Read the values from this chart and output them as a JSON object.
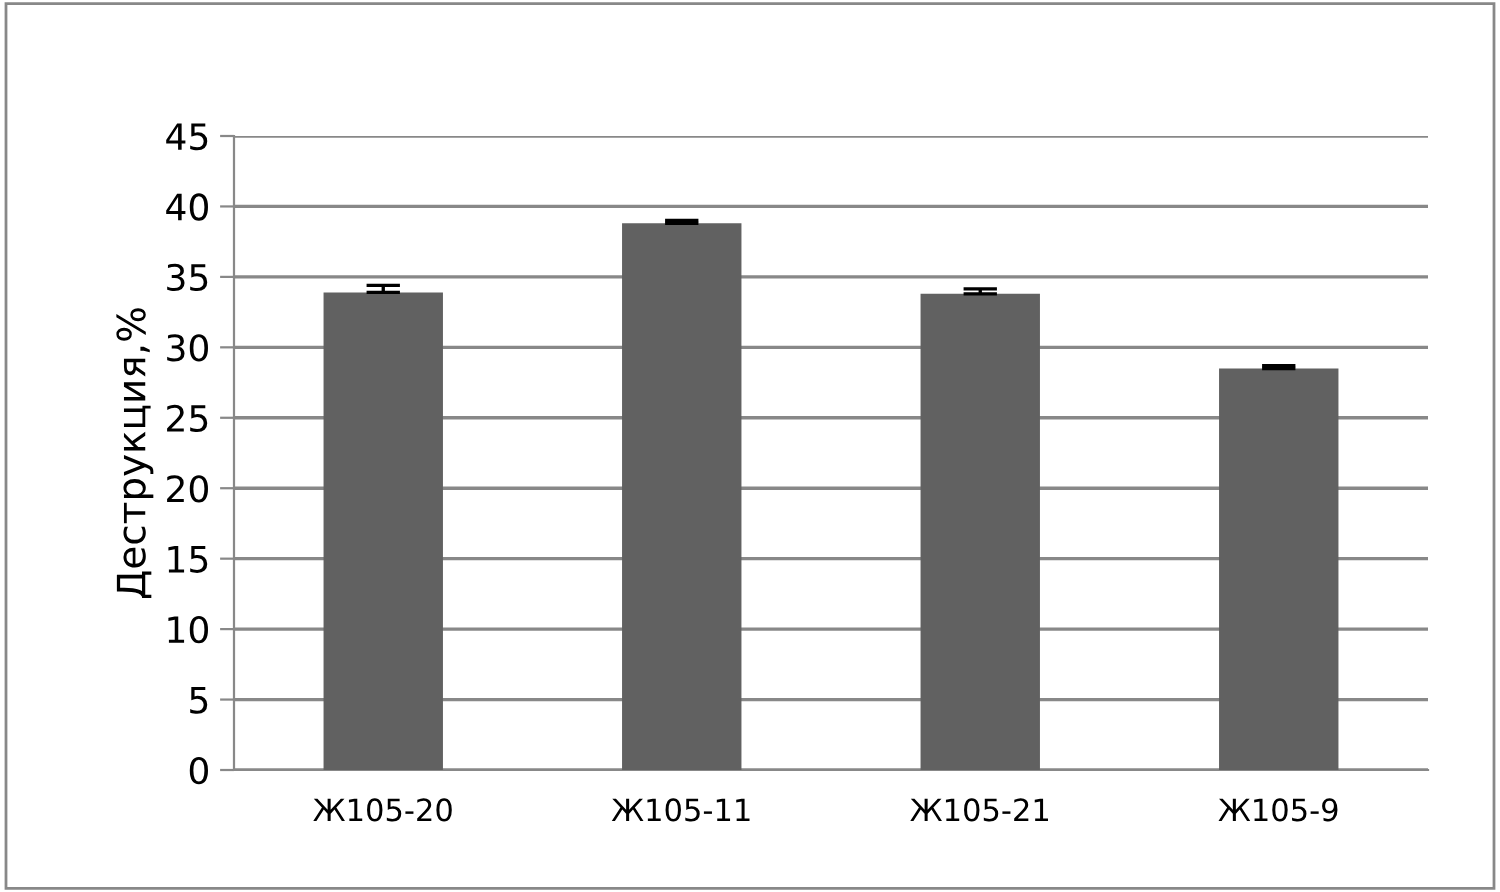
{
  "chart_data": {
    "type": "bar",
    "ylabel": "Деструкция,%",
    "categories": [
      "Ж105-20",
      "Ж105-11",
      "Ж105-21",
      "Ж105-9"
    ],
    "values": [
      33.9,
      38.8,
      33.8,
      28.5
    ],
    "errors": [
      [
        33.9,
        34.4
      ],
      [
        38.8,
        39.0
      ],
      [
        33.8,
        34.15
      ],
      [
        28.5,
        28.7
      ]
    ],
    "color": "#616161",
    "ylim": [
      0,
      45
    ],
    "yticks": [
      0,
      5,
      10,
      15,
      20,
      25,
      30,
      35,
      40,
      45
    ],
    "grid": "y",
    "legend": false
  }
}
